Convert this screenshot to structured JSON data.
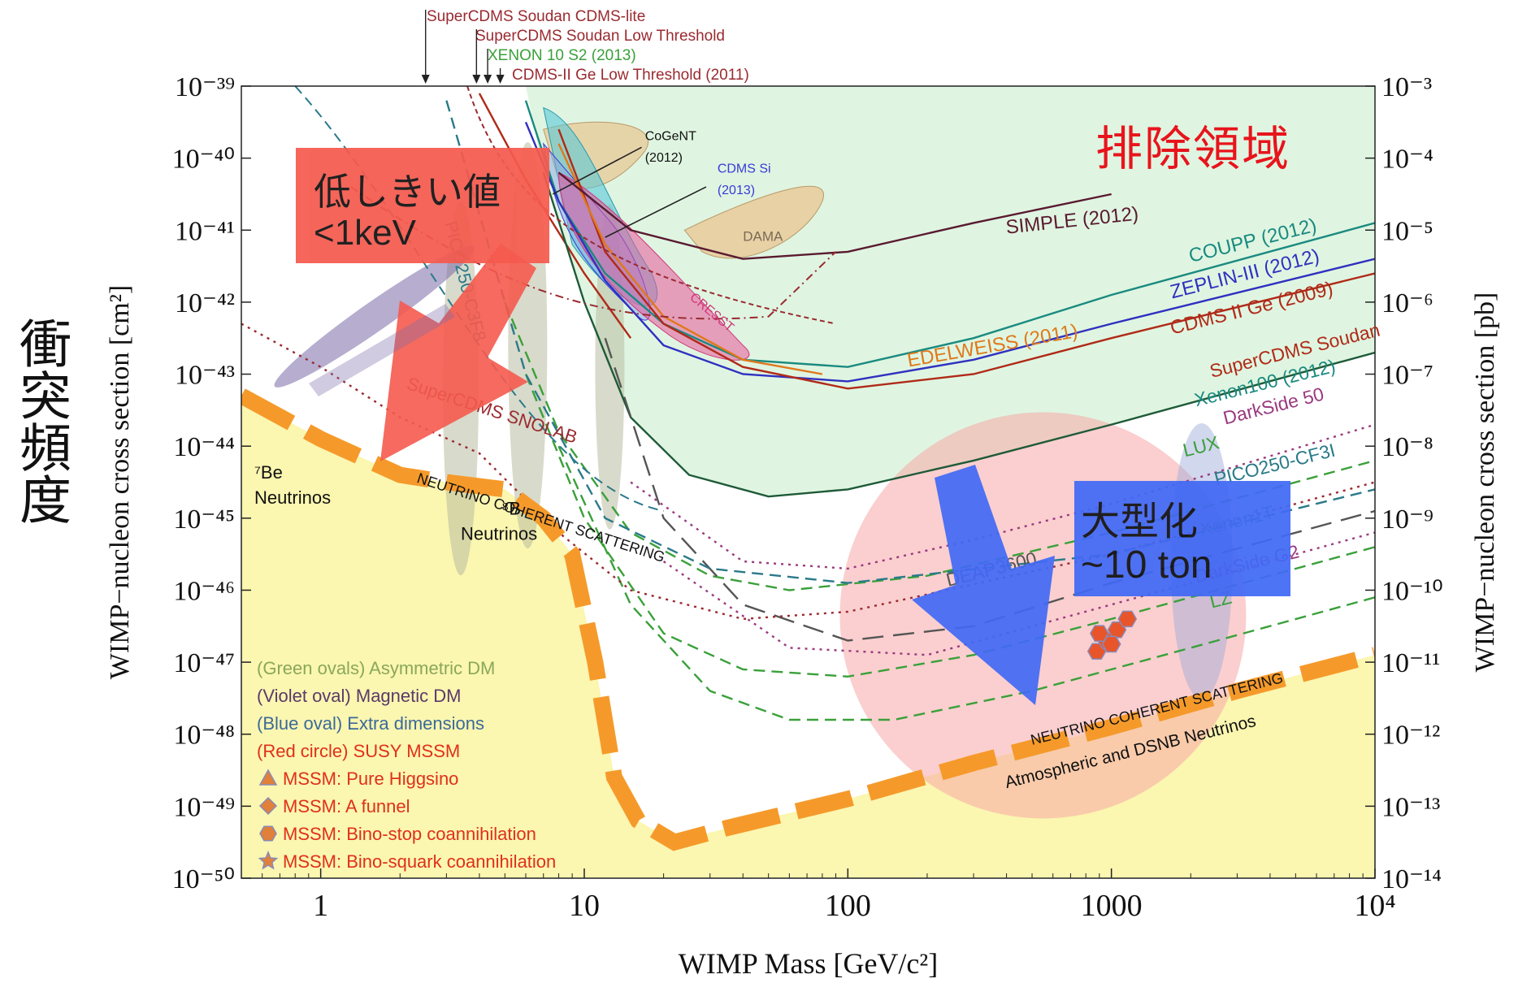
{
  "page": {
    "y_side_label": "衝突頻度",
    "exclusion_label": "排除領域",
    "low_threshold_box": {
      "line1": "低しきい値",
      "line2": "<1keV"
    },
    "scale_up_box": {
      "line1": "大型化",
      "line2": "~10 ton"
    }
  },
  "colors": {
    "plot_bg_excluded": "#dff5e1",
    "plot_bg_floor": "#fbf6b0",
    "neutrino_band": "#f59a2a",
    "red_box": "#f55a4e",
    "blue_box": "#4169f5",
    "exclusion_text": "#e8141c",
    "coupp": "#1a8a80",
    "zeplin": "#3030c0",
    "cdms": "#b02a18",
    "edelweiss": "#e0781a",
    "simple": "#5a1a30",
    "lux": "#3aa03a",
    "darkside": "#9a3a80",
    "susy_circle": "#f7a8a8"
  },
  "chart_data": {
    "type": "line",
    "title": "",
    "xlabel": "WIMP Mass [GeV/c²]",
    "ylabel": "WIMP−nucleon cross section [cm²]",
    "ylabel_right": "WIMP−nucleon cross section [pb]",
    "x_scale": "log",
    "y_scale": "log",
    "xlim": [
      0.5,
      10000
    ],
    "ylim": [
      1e-50,
      1e-39
    ],
    "x_ticks": [
      {
        "value": 1,
        "label": "1"
      },
      {
        "value": 10,
        "label": "10"
      },
      {
        "value": 100,
        "label": "100"
      },
      {
        "value": 1000,
        "label": "1000"
      },
      {
        "value": 10000,
        "label": "10⁴"
      }
    ],
    "y_ticks_left": [
      {
        "exp": -39,
        "label": "10⁻³⁹"
      },
      {
        "exp": -40,
        "label": "10⁻⁴⁰"
      },
      {
        "exp": -41,
        "label": "10⁻⁴¹"
      },
      {
        "exp": -42,
        "label": "10⁻⁴²"
      },
      {
        "exp": -43,
        "label": "10⁻⁴³"
      },
      {
        "exp": -44,
        "label": "10⁻⁴⁴"
      },
      {
        "exp": -45,
        "label": "10⁻⁴⁵"
      },
      {
        "exp": -46,
        "label": "10⁻⁴⁶"
      },
      {
        "exp": -47,
        "label": "10⁻⁴⁷"
      },
      {
        "exp": -48,
        "label": "10⁻⁴⁸"
      },
      {
        "exp": -49,
        "label": "10⁻⁴⁹"
      },
      {
        "exp": -50,
        "label": "10⁻⁵⁰"
      }
    ],
    "y_ticks_right": [
      {
        "exp": -39,
        "label": "10⁻³"
      },
      {
        "exp": -40,
        "label": "10⁻⁴"
      },
      {
        "exp": -41,
        "label": "10⁻⁵"
      },
      {
        "exp": -42,
        "label": "10⁻⁶"
      },
      {
        "exp": -43,
        "label": "10⁻⁷"
      },
      {
        "exp": -44,
        "label": "10⁻⁸"
      },
      {
        "exp": -45,
        "label": "10⁻⁹"
      },
      {
        "exp": -46,
        "label": "10⁻¹⁰"
      },
      {
        "exp": -47,
        "label": "10⁻¹¹"
      },
      {
        "exp": -48,
        "label": "10⁻¹²"
      },
      {
        "exp": -49,
        "label": "10⁻¹³"
      },
      {
        "exp": -50,
        "label": "10⁻¹⁴"
      }
    ],
    "series": [
      {
        "name": "COUPP (2012)",
        "color": "#1a8a80",
        "style": "solid",
        "points": [
          [
            6,
            -39.2
          ],
          [
            8,
            -40.6
          ],
          [
            12,
            -41.6
          ],
          [
            20,
            -42.3
          ],
          [
            40,
            -42.8
          ],
          [
            100,
            -42.9
          ],
          [
            300,
            -42.5
          ],
          [
            1000,
            -41.9
          ],
          [
            10000,
            -40.9
          ]
        ]
      },
      {
        "name": "ZEPLIN-III (2012)",
        "color": "#3030c0",
        "style": "solid",
        "points": [
          [
            6,
            -39.5
          ],
          [
            8,
            -40.6
          ],
          [
            12,
            -41.7
          ],
          [
            20,
            -42.6
          ],
          [
            40,
            -43.0
          ],
          [
            100,
            -43.1
          ],
          [
            300,
            -42.8
          ],
          [
            1000,
            -42.3
          ],
          [
            10000,
            -41.4
          ]
        ]
      },
      {
        "name": "CDMS II Ge (2009)",
        "color": "#b02a18",
        "style": "solid",
        "points": [
          [
            8,
            -39.6
          ],
          [
            12,
            -41.3
          ],
          [
            20,
            -42.3
          ],
          [
            40,
            -42.9
          ],
          [
            100,
            -43.2
          ],
          [
            300,
            -43.0
          ],
          [
            1000,
            -42.5
          ],
          [
            10000,
            -41.6
          ]
        ]
      },
      {
        "name": "EDELWEISS (2011)",
        "color": "#e0781a",
        "style": "solid",
        "points": [
          [
            8,
            -39.8
          ],
          [
            12,
            -41.2
          ],
          [
            20,
            -42.2
          ],
          [
            40,
            -42.8
          ],
          [
            80,
            -43.0
          ]
        ]
      },
      {
        "name": "SUPERCDMS Soudan",
        "color": "#b02a18",
        "style": "solid",
        "points": [
          [
            4,
            -39.1
          ],
          [
            6,
            -40.3
          ],
          [
            10,
            -41.6
          ],
          [
            15,
            -42.5
          ]
        ]
      },
      {
        "name": "XENON100 (2012)",
        "color": "#1f5a38",
        "style": "solid",
        "points": [
          [
            7,
            -40.2
          ],
          [
            10,
            -42.0
          ],
          [
            15,
            -43.6
          ],
          [
            25,
            -44.4
          ],
          [
            50,
            -44.7
          ],
          [
            100,
            -44.6
          ],
          [
            300,
            -44.2
          ],
          [
            1000,
            -43.7
          ],
          [
            10000,
            -42.7
          ]
        ]
      },
      {
        "name": "SIMPLE (2012)",
        "color": "#5a1a30",
        "style": "solid",
        "points": [
          [
            8,
            -40.2
          ],
          [
            15,
            -41.0
          ],
          [
            40,
            -41.4
          ],
          [
            100,
            -41.3
          ],
          [
            300,
            -40.9
          ],
          [
            1000,
            -40.5
          ]
        ]
      },
      {
        "name": "LUX",
        "color": "#3aa03a",
        "style": "dashed",
        "points": [
          [
            5,
            -42
          ],
          [
            8,
            -43.8
          ],
          [
            15,
            -45.2
          ],
          [
            30,
            -45.8
          ],
          [
            60,
            -46.0
          ],
          [
            200,
            -45.8
          ],
          [
            1000,
            -45.2
          ],
          [
            10000,
            -44.2
          ]
        ]
      },
      {
        "name": "Xenon1T",
        "color": "#3aa03a",
        "style": "dashed",
        "points": [
          [
            6,
            -43
          ],
          [
            10,
            -45
          ],
          [
            20,
            -46.6
          ],
          [
            40,
            -47.1
          ],
          [
            100,
            -47.2
          ],
          [
            300,
            -46.9
          ],
          [
            1000,
            -46.4
          ],
          [
            10000,
            -45.4
          ]
        ]
      },
      {
        "name": "LZ",
        "color": "#3aa03a",
        "style": "dashed",
        "points": [
          [
            8,
            -44
          ],
          [
            15,
            -46.2
          ],
          [
            30,
            -47.4
          ],
          [
            60,
            -47.8
          ],
          [
            150,
            -47.8
          ],
          [
            500,
            -47.4
          ],
          [
            2000,
            -46.8
          ],
          [
            10000,
            -46.1
          ]
        ]
      },
      {
        "name": "DarkSide 50",
        "color": "#9a3a80",
        "style": "dotted",
        "points": [
          [
            15,
            -44.5
          ],
          [
            40,
            -45.6
          ],
          [
            100,
            -45.7
          ],
          [
            300,
            -45.3
          ],
          [
            1000,
            -44.8
          ],
          [
            10000,
            -43.7
          ]
        ]
      },
      {
        "name": "DarkSide G2",
        "color": "#9a3a80",
        "style": "dotted",
        "points": [
          [
            20,
            -45.6
          ],
          [
            60,
            -46.8
          ],
          [
            200,
            -46.9
          ],
          [
            1000,
            -46.2
          ],
          [
            10000,
            -45.2
          ]
        ]
      },
      {
        "name": "DEAP3600",
        "color": "#555555",
        "style": "longdash",
        "points": [
          [
            12,
            -42.5
          ],
          [
            20,
            -45.0
          ],
          [
            40,
            -46.2
          ],
          [
            100,
            -46.7
          ],
          [
            300,
            -46.5
          ],
          [
            1000,
            -45.9
          ],
          [
            10000,
            -44.9
          ]
        ]
      },
      {
        "name": "PICO250-CF3I",
        "color": "#2a7a8a",
        "style": "dashed",
        "points": [
          [
            3,
            -39.2
          ],
          [
            6,
            -43
          ],
          [
            12,
            -45.0
          ],
          [
            30,
            -45.7
          ],
          [
            100,
            -45.9
          ],
          [
            1000,
            -45.5
          ],
          [
            10000,
            -44.6
          ]
        ]
      },
      {
        "name": "SuperCDMS SNOLAB",
        "color": "#9a2a30",
        "style": "dotted",
        "points": [
          [
            0.5,
            -42.3
          ],
          [
            1,
            -42.9
          ],
          [
            2,
            -43.6
          ],
          [
            4,
            -44.1
          ],
          [
            8,
            -45.2
          ],
          [
            15,
            -46.0
          ],
          [
            40,
            -46.4
          ],
          [
            100,
            -46.3
          ],
          [
            1000,
            -45.5
          ],
          [
            10000,
            -44.5
          ]
        ]
      },
      {
        "name": "Neutrino floor",
        "color": "#f59a2a",
        "style": "band",
        "points": [
          [
            0.5,
            -43.3
          ],
          [
            1,
            -43.9
          ],
          [
            2,
            -44.4
          ],
          [
            3,
            -44.5
          ],
          [
            5,
            -44.6
          ],
          [
            7,
            -45.0
          ],
          [
            9,
            -45.5
          ],
          [
            11,
            -47.0
          ],
          [
            13,
            -48.6
          ],
          [
            16,
            -49.2
          ],
          [
            22,
            -49.5
          ],
          [
            35,
            -49.3
          ],
          [
            100,
            -48.9
          ],
          [
            300,
            -48.4
          ],
          [
            1000,
            -47.9
          ],
          [
            3000,
            -47.4
          ],
          [
            10000,
            -46.9
          ]
        ]
      }
    ],
    "labels": [
      {
        "text": "SIMPLE (2012)",
        "mass": 400,
        "exp": -41.05,
        "rot": -6,
        "color": "#5a1a30",
        "size": 24
      },
      {
        "text": "COUPP (2012)",
        "mass": 2000,
        "exp": -41.45,
        "rot": -14,
        "color": "#1a8a80",
        "size": 24
      },
      {
        "text": "ZEPLIN-III (2012)",
        "mass": 1700,
        "exp": -41.95,
        "rot": -14,
        "color": "#3030c0",
        "size": 24
      },
      {
        "text": "CDMS II Ge  (2009)",
        "mass": 1700,
        "exp": -42.45,
        "rot": -14,
        "color": "#b02a18",
        "size": 24
      },
      {
        "text": "EDELWEISS (2011)",
        "mass": 170,
        "exp": -42.9,
        "rot": -10,
        "color": "#e0781a",
        "size": 24
      },
      {
        "text": "SuperCDMS Soudan",
        "mass": 2400,
        "exp": -43.05,
        "rot": -14,
        "color": "#b02a18",
        "size": 23
      },
      {
        "text": "Xenon100 (2012)",
        "mass": 2100,
        "exp": -43.45,
        "rot": -14,
        "color": "#1a8a80",
        "size": 23
      },
      {
        "text": "DarkSide 50",
        "mass": 2700,
        "exp": -43.7,
        "rot": -14,
        "color": "#9a3a80",
        "size": 23
      },
      {
        "text": "LUX",
        "mass": 1900,
        "exp": -44.15,
        "rot": -14,
        "color": "#3aa03a",
        "size": 23
      },
      {
        "text": "PICO250-CF3I",
        "mass": 2500,
        "exp": -44.55,
        "rot": -14,
        "color": "#2a7a8a",
        "size": 23
      },
      {
        "text": "Xenon1T",
        "mass": 2200,
        "exp": -45.25,
        "rot": -14,
        "color": "#3aa03a",
        "size": 23
      },
      {
        "text": "DarkSide G2",
        "mass": 2100,
        "exp": -45.9,
        "rot": -14,
        "color": "#9a3a80",
        "size": 23
      },
      {
        "text": "LZ",
        "mass": 2400,
        "exp": -46.25,
        "rot": -14,
        "color": "#3aa03a",
        "size": 23
      },
      {
        "text": "DEAP3600",
        "mass": 240,
        "exp": -45.95,
        "rot": -14,
        "color": "#555555",
        "size": 23
      },
      {
        "text": "SuperCDMS SNOLAB",
        "mass": 2.1,
        "exp": -43.2,
        "rot": 18,
        "color": "#9a2a30",
        "size": 22
      },
      {
        "text": "PICO250-C3F8",
        "mass": 2.95,
        "exp": -40.9,
        "rot": 76,
        "color": "#2a7a8a",
        "size": 22
      },
      {
        "text": "NEUTRINO COHERENT SCATTERING",
        "mass": 2.3,
        "exp": -44.5,
        "rot": 18,
        "color": "#111111",
        "size": 18
      },
      {
        "text": "NEUTRINO COHERENT SCATTERING",
        "mass": 500,
        "exp": -48.15,
        "rot": -14,
        "color": "#111111",
        "size": 18
      },
      {
        "text": "Atmospheric and DSNB Neutrinos",
        "mass": 400,
        "exp": -48.75,
        "rot": -14,
        "color": "#111111",
        "size": 21
      },
      {
        "text": "CoGeNT",
        "mass": 17,
        "exp": -39.75,
        "rot": 0,
        "color": "#111111",
        "size": 16
      },
      {
        "text": "(2012)",
        "mass": 17,
        "exp": -40.05,
        "rot": 0,
        "color": "#111111",
        "size": 16
      },
      {
        "text": "CDMS Si",
        "mass": 32,
        "exp": -40.2,
        "rot": 0,
        "color": "#3a3ad8",
        "size": 16
      },
      {
        "text": "(2013)",
        "mass": 32,
        "exp": -40.5,
        "rot": 0,
        "color": "#3a3ad8",
        "size": 16
      },
      {
        "text": "DAMA",
        "mass": 40,
        "exp": -41.15,
        "rot": 0,
        "color": "#7a6a55",
        "size": 17
      },
      {
        "text": "CRESST",
        "mass": 25,
        "exp": -41.95,
        "rot": 40,
        "color": "#d0367a",
        "size": 16
      },
      {
        "text": "⁷Be",
        "mass": 0.56,
        "exp": -44.45,
        "rot": 0,
        "color": "#111111",
        "size": 22
      },
      {
        "text": "Neutrinos",
        "mass": 0.56,
        "exp": -44.8,
        "rot": 0,
        "color": "#111111",
        "size": 22
      },
      {
        "text": "⁸B",
        "mass": 4.85,
        "exp": -44.95,
        "rot": 0,
        "color": "#111111",
        "size": 22
      },
      {
        "text": "Neutrinos",
        "mass": 3.4,
        "exp": -45.3,
        "rot": 0,
        "color": "#111111",
        "size": 22
      }
    ],
    "top_labels": [
      {
        "text": "SuperCDMS Soudan CDMS-lite",
        "arrow_mass": 2.5,
        "color": "#9a2a30"
      },
      {
        "text": "SuperCDMS Soudan Low Threshold",
        "arrow_mass": 3.9,
        "color": "#9a2a30"
      },
      {
        "text": "XENON 10 S2 (2013)",
        "arrow_mass": 4.3,
        "color": "#3aa03a"
      },
      {
        "text": "CDMS-II Ge Low Threshold (2011)",
        "arrow_mass": 4.8,
        "color": "#9a2a30"
      }
    ],
    "legend": [
      {
        "text": "(Green ovals) Asymmetric DM",
        "color": "#8aa85a",
        "marker": "none"
      },
      {
        "text": "(Violet oval) Magnetic DM",
        "color": "#5a3a6a",
        "marker": "none"
      },
      {
        "text": "(Blue oval) Extra dimensions",
        "color": "#3a6a9a",
        "marker": "none"
      },
      {
        "text": "(Red circle) SUSY MSSM",
        "color": "#e0301a",
        "marker": "none"
      },
      {
        "text": "MSSM: Pure Higgsino",
        "color": "#e0301a",
        "marker": "triangle"
      },
      {
        "text": "MSSM: A funnel",
        "color": "#e0301a",
        "marker": "diamond"
      },
      {
        "text": "MSSM: Bino-stop coannihilation",
        "color": "#e0301a",
        "marker": "hexagon"
      },
      {
        "text": "MSSM: Bino-squark coannihilation",
        "color": "#e0301a",
        "marker": "star"
      }
    ],
    "legend_placement": "bottom-left",
    "grid": false
  }
}
